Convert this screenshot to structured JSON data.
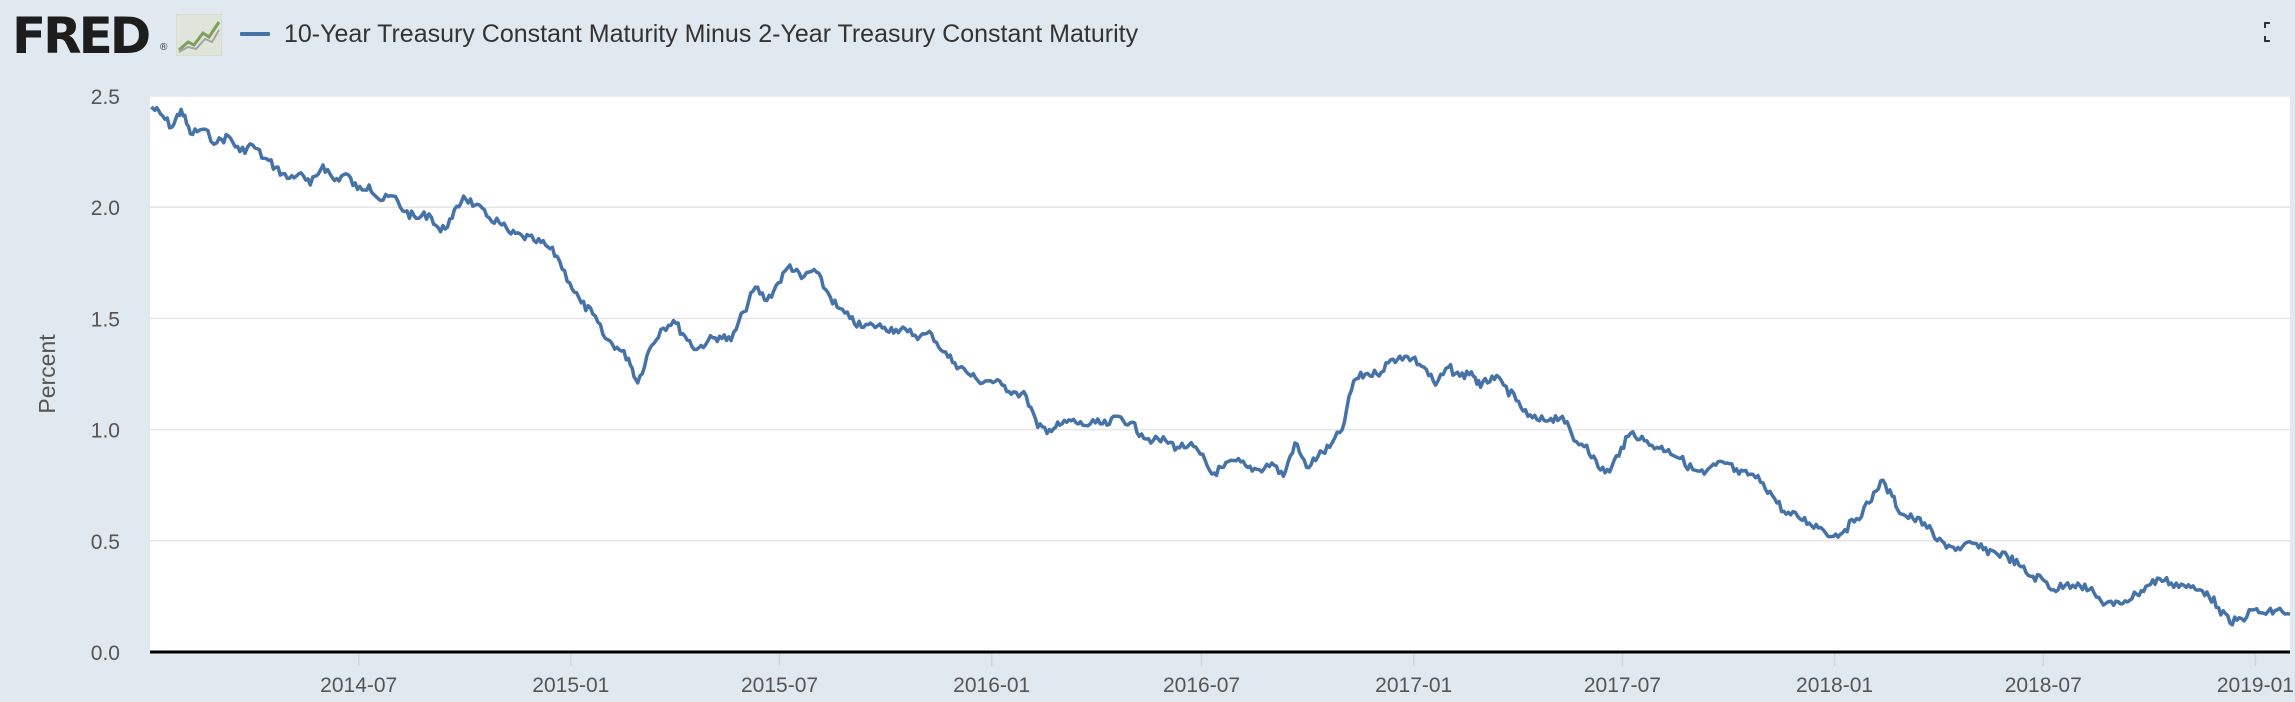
{
  "header": {
    "logo_text": "FRED",
    "logo_reg": "®",
    "series_title": "10-Year Treasury Constant Maturity Minus 2-Year Treasury Constant Maturity"
  },
  "colors": {
    "background": "#e1e9f0",
    "plot": "#ffffff",
    "series": "#4572a7",
    "grid": "#e6e6e6",
    "axis": "#000000"
  },
  "chart_data": {
    "type": "line",
    "title": "10-Year Treasury Constant Maturity Minus 2-Year Treasury Constant Maturity",
    "xlabel": "",
    "ylabel": "Percent",
    "ylim": [
      0,
      2.5
    ],
    "yticks": [
      0.0,
      0.5,
      1.0,
      1.5,
      2.0,
      2.5
    ],
    "ytick_labels": [
      "0.0",
      "0.5",
      "1.0",
      "1.5",
      "2.0",
      "2.5"
    ],
    "x_range": [
      "2014-01-01",
      "2019-01-31"
    ],
    "xticks": [
      "2014-07-01",
      "2015-01-01",
      "2015-07-01",
      "2016-01-01",
      "2016-07-01",
      "2017-01-01",
      "2017-07-01",
      "2018-01-01",
      "2018-07-01",
      "2019-01-01"
    ],
    "xtick_labels": [
      "2014-07",
      "2015-01",
      "2015-07",
      "2016-01",
      "2016-07",
      "2017-01",
      "2017-07",
      "2018-01",
      "2018-07",
      "2019-01"
    ],
    "grid": true,
    "legend": "top-left",
    "series": [
      {
        "name": "10-Year Treasury Constant Maturity Minus 2-Year Treasury Constant Maturity",
        "points": [
          [
            "2014-01-02",
            2.45
          ],
          [
            "2014-01-10",
            2.42
          ],
          [
            "2014-01-20",
            2.36
          ],
          [
            "2014-01-28",
            2.44
          ],
          [
            "2014-02-05",
            2.33
          ],
          [
            "2014-02-15",
            2.35
          ],
          [
            "2014-02-28",
            2.29
          ],
          [
            "2014-03-10",
            2.32
          ],
          [
            "2014-03-20",
            2.25
          ],
          [
            "2014-03-31",
            2.28
          ],
          [
            "2014-04-10",
            2.22
          ],
          [
            "2014-04-20",
            2.18
          ],
          [
            "2014-04-30",
            2.13
          ],
          [
            "2014-05-10",
            2.15
          ],
          [
            "2014-05-20",
            2.1
          ],
          [
            "2014-05-31",
            2.19
          ],
          [
            "2014-06-10",
            2.12
          ],
          [
            "2014-06-20",
            2.15
          ],
          [
            "2014-06-30",
            2.08
          ],
          [
            "2014-07-10",
            2.1
          ],
          [
            "2014-07-20",
            2.03
          ],
          [
            "2014-07-31",
            2.05
          ],
          [
            "2014-08-10",
            1.98
          ],
          [
            "2014-08-20",
            1.95
          ],
          [
            "2014-08-31",
            1.97
          ],
          [
            "2014-09-10",
            1.89
          ],
          [
            "2014-09-20",
            1.95
          ],
          [
            "2014-09-30",
            2.05
          ],
          [
            "2014-10-10",
            2.01
          ],
          [
            "2014-10-20",
            1.96
          ],
          [
            "2014-10-31",
            1.93
          ],
          [
            "2014-11-10",
            1.88
          ],
          [
            "2014-11-20",
            1.87
          ],
          [
            "2014-11-30",
            1.85
          ],
          [
            "2014-12-10",
            1.83
          ],
          [
            "2014-12-20",
            1.78
          ],
          [
            "2014-12-31",
            1.66
          ],
          [
            "2015-01-10",
            1.57
          ],
          [
            "2015-01-20",
            1.52
          ],
          [
            "2015-01-31",
            1.41
          ],
          [
            "2015-02-10",
            1.37
          ],
          [
            "2015-02-20",
            1.32
          ],
          [
            "2015-02-28",
            1.21
          ],
          [
            "2015-03-10",
            1.36
          ],
          [
            "2015-03-20",
            1.45
          ],
          [
            "2015-03-31",
            1.49
          ],
          [
            "2015-04-10",
            1.42
          ],
          [
            "2015-04-20",
            1.36
          ],
          [
            "2015-04-30",
            1.4
          ],
          [
            "2015-05-10",
            1.42
          ],
          [
            "2015-05-20",
            1.4
          ],
          [
            "2015-05-31",
            1.53
          ],
          [
            "2015-06-10",
            1.64
          ],
          [
            "2015-06-20",
            1.58
          ],
          [
            "2015-06-30",
            1.66
          ],
          [
            "2015-07-10",
            1.74
          ],
          [
            "2015-07-20",
            1.68
          ],
          [
            "2015-07-31",
            1.72
          ],
          [
            "2015-08-10",
            1.63
          ],
          [
            "2015-08-20",
            1.55
          ],
          [
            "2015-08-31",
            1.5
          ],
          [
            "2015-09-10",
            1.46
          ],
          [
            "2015-09-20",
            1.47
          ],
          [
            "2015-09-30",
            1.46
          ],
          [
            "2015-10-10",
            1.45
          ],
          [
            "2015-10-20",
            1.44
          ],
          [
            "2015-10-31",
            1.42
          ],
          [
            "2015-11-10",
            1.43
          ],
          [
            "2015-11-20",
            1.35
          ],
          [
            "2015-11-30",
            1.3
          ],
          [
            "2015-12-10",
            1.26
          ],
          [
            "2015-12-20",
            1.22
          ],
          [
            "2015-12-31",
            1.22
          ],
          [
            "2016-01-10",
            1.2
          ],
          [
            "2016-01-20",
            1.17
          ],
          [
            "2016-01-31",
            1.15
          ],
          [
            "2016-02-10",
            1.01
          ],
          [
            "2016-02-20",
            1.0
          ],
          [
            "2016-02-29",
            1.02
          ],
          [
            "2016-03-10",
            1.04
          ],
          [
            "2016-03-20",
            1.02
          ],
          [
            "2016-03-31",
            1.03
          ],
          [
            "2016-04-10",
            1.02
          ],
          [
            "2016-04-20",
            1.06
          ],
          [
            "2016-04-30",
            1.03
          ],
          [
            "2016-05-10",
            0.98
          ],
          [
            "2016-05-20",
            0.95
          ],
          [
            "2016-05-31",
            0.95
          ],
          [
            "2016-06-10",
            0.92
          ],
          [
            "2016-06-20",
            0.93
          ],
          [
            "2016-06-30",
            0.89
          ],
          [
            "2016-07-10",
            0.8
          ],
          [
            "2016-07-20",
            0.83
          ],
          [
            "2016-07-31",
            0.86
          ],
          [
            "2016-08-10",
            0.83
          ],
          [
            "2016-08-20",
            0.82
          ],
          [
            "2016-08-31",
            0.85
          ],
          [
            "2016-09-10",
            0.79
          ],
          [
            "2016-09-20",
            0.94
          ],
          [
            "2016-09-30",
            0.83
          ],
          [
            "2016-10-10",
            0.88
          ],
          [
            "2016-10-20",
            0.92
          ],
          [
            "2016-10-31",
            1.0
          ],
          [
            "2016-11-10",
            1.22
          ],
          [
            "2016-11-20",
            1.25
          ],
          [
            "2016-11-30",
            1.25
          ],
          [
            "2016-12-10",
            1.3
          ],
          [
            "2016-12-20",
            1.33
          ],
          [
            "2016-12-31",
            1.32
          ],
          [
            "2017-01-10",
            1.28
          ],
          [
            "2017-01-20",
            1.2
          ],
          [
            "2017-01-31",
            1.28
          ],
          [
            "2017-02-10",
            1.24
          ],
          [
            "2017-02-20",
            1.26
          ],
          [
            "2017-02-28",
            1.19
          ],
          [
            "2017-03-10",
            1.24
          ],
          [
            "2017-03-20",
            1.2
          ],
          [
            "2017-03-31",
            1.13
          ],
          [
            "2017-04-10",
            1.06
          ],
          [
            "2017-04-20",
            1.04
          ],
          [
            "2017-04-30",
            1.05
          ],
          [
            "2017-05-10",
            1.06
          ],
          [
            "2017-05-20",
            0.95
          ],
          [
            "2017-05-31",
            0.93
          ],
          [
            "2017-06-10",
            0.83
          ],
          [
            "2017-06-20",
            0.81
          ],
          [
            "2017-06-30",
            0.92
          ],
          [
            "2017-07-10",
            0.99
          ],
          [
            "2017-07-20",
            0.95
          ],
          [
            "2017-07-31",
            0.92
          ],
          [
            "2017-08-10",
            0.91
          ],
          [
            "2017-08-20",
            0.87
          ],
          [
            "2017-08-31",
            0.82
          ],
          [
            "2017-09-10",
            0.8
          ],
          [
            "2017-09-20",
            0.84
          ],
          [
            "2017-09-30",
            0.85
          ],
          [
            "2017-10-10",
            0.8
          ],
          [
            "2017-10-20",
            0.8
          ],
          [
            "2017-10-31",
            0.76
          ],
          [
            "2017-11-10",
            0.69
          ],
          [
            "2017-11-20",
            0.62
          ],
          [
            "2017-11-30",
            0.61
          ],
          [
            "2017-12-10",
            0.58
          ],
          [
            "2017-12-20",
            0.56
          ],
          [
            "2017-12-31",
            0.52
          ],
          [
            "2018-01-10",
            0.55
          ],
          [
            "2018-01-20",
            0.6
          ],
          [
            "2018-01-31",
            0.67
          ],
          [
            "2018-02-10",
            0.77
          ],
          [
            "2018-02-20",
            0.7
          ],
          [
            "2018-02-28",
            0.62
          ],
          [
            "2018-03-10",
            0.6
          ],
          [
            "2018-03-20",
            0.58
          ],
          [
            "2018-03-31",
            0.5
          ],
          [
            "2018-04-10",
            0.48
          ],
          [
            "2018-04-20",
            0.46
          ],
          [
            "2018-04-30",
            0.49
          ],
          [
            "2018-05-10",
            0.46
          ],
          [
            "2018-05-20",
            0.45
          ],
          [
            "2018-05-31",
            0.43
          ],
          [
            "2018-06-10",
            0.39
          ],
          [
            "2018-06-20",
            0.34
          ],
          [
            "2018-06-30",
            0.33
          ],
          [
            "2018-07-10",
            0.28
          ],
          [
            "2018-07-20",
            0.3
          ],
          [
            "2018-07-31",
            0.31
          ],
          [
            "2018-08-10",
            0.28
          ],
          [
            "2018-08-20",
            0.23
          ],
          [
            "2018-08-31",
            0.21
          ],
          [
            "2018-09-10",
            0.23
          ],
          [
            "2018-09-20",
            0.26
          ],
          [
            "2018-09-30",
            0.3
          ],
          [
            "2018-10-10",
            0.33
          ],
          [
            "2018-10-20",
            0.31
          ],
          [
            "2018-10-31",
            0.3
          ],
          [
            "2018-11-10",
            0.28
          ],
          [
            "2018-11-20",
            0.27
          ],
          [
            "2018-11-30",
            0.2
          ],
          [
            "2018-12-10",
            0.13
          ],
          [
            "2018-12-20",
            0.15
          ],
          [
            "2018-12-31",
            0.19
          ],
          [
            "2019-01-10",
            0.17
          ],
          [
            "2019-01-20",
            0.19
          ],
          [
            "2019-01-31",
            0.17
          ]
        ]
      }
    ]
  }
}
